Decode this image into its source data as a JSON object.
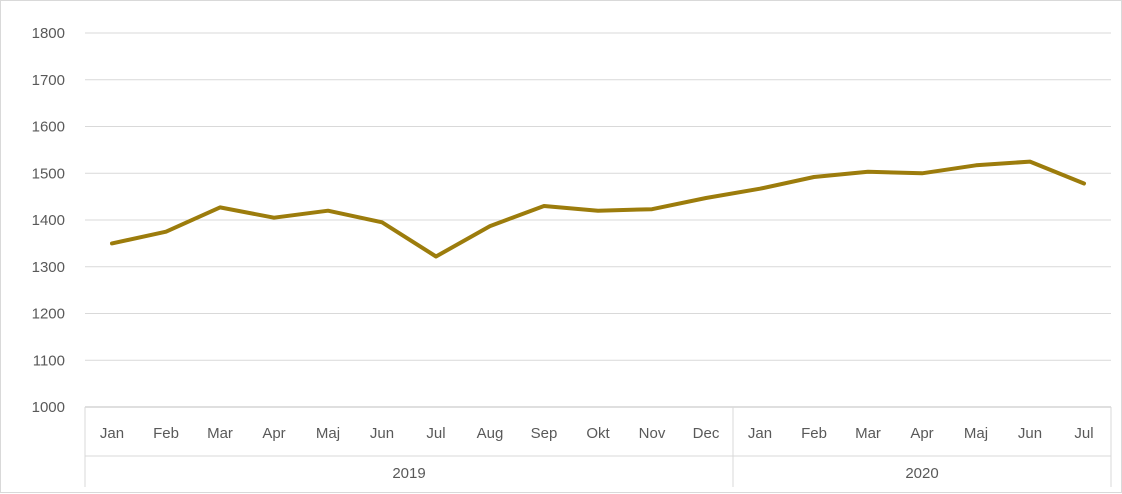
{
  "chart_data": {
    "type": "line",
    "title": "",
    "xlabel": "",
    "ylabel": "",
    "ylim": [
      1000,
      1800
    ],
    "yticks": [
      1000,
      1100,
      1200,
      1300,
      1400,
      1500,
      1600,
      1700,
      1800
    ],
    "grid": true,
    "legend": "none",
    "color": "#9c7c0c",
    "categories": [
      "Jan",
      "Feb",
      "Mar",
      "Apr",
      "Maj",
      "Jun",
      "Jul",
      "Aug",
      "Sep",
      "Okt",
      "Nov",
      "Dec",
      "Jan",
      "Feb",
      "Mar",
      "Apr",
      "Maj",
      "Jun",
      "Jul"
    ],
    "groups": [
      {
        "label": "2019",
        "count": 12
      },
      {
        "label": "2020",
        "count": 7
      }
    ],
    "series": [
      {
        "values": [
          1350,
          1375,
          1427,
          1405,
          1420,
          1395,
          1322,
          1387,
          1430,
          1420,
          1423,
          1447,
          1467,
          1492,
          1503,
          1500,
          1517,
          1525,
          1478
        ]
      }
    ]
  }
}
